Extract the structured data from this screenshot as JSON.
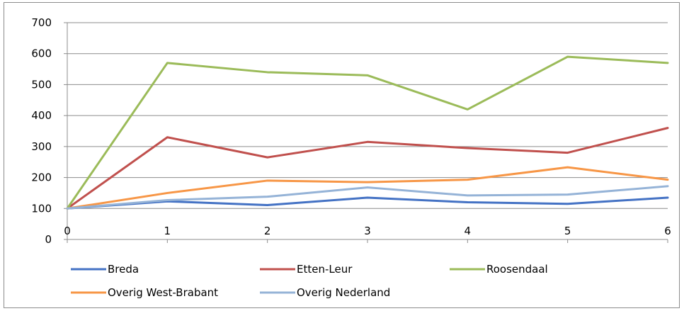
{
  "chart_data": {
    "type": "line",
    "title": "",
    "xlabel": "",
    "ylabel": "",
    "x": [
      0,
      1,
      2,
      3,
      4,
      5,
      6
    ],
    "xlim": [
      0,
      6
    ],
    "ylim": [
      0,
      700
    ],
    "yticks": [
      0,
      100,
      200,
      300,
      400,
      500,
      600,
      700
    ],
    "xticks": [
      0,
      1,
      2,
      3,
      4,
      5,
      6
    ],
    "grid": "horizontal",
    "legend_position": "bottom",
    "series": [
      {
        "name": "Breda",
        "color": "#4472c4",
        "values": [
          100,
          123,
          111,
          135,
          120,
          115,
          135
        ]
      },
      {
        "name": "Etten-Leur",
        "color": "#c0504d",
        "values": [
          100,
          330,
          265,
          315,
          295,
          280,
          360
        ]
      },
      {
        "name": "Roosendaal",
        "color": "#9bbb59",
        "values": [
          100,
          570,
          540,
          530,
          420,
          590,
          570
        ]
      },
      {
        "name": "Overig West-Brabant",
        "color": "#f79646",
        "values": [
          100,
          150,
          190,
          185,
          193,
          233,
          193
        ]
      },
      {
        "name": "Overig Nederland",
        "color": "#95b3d7",
        "values": [
          100,
          127,
          138,
          168,
          142,
          145,
          172
        ]
      }
    ]
  }
}
